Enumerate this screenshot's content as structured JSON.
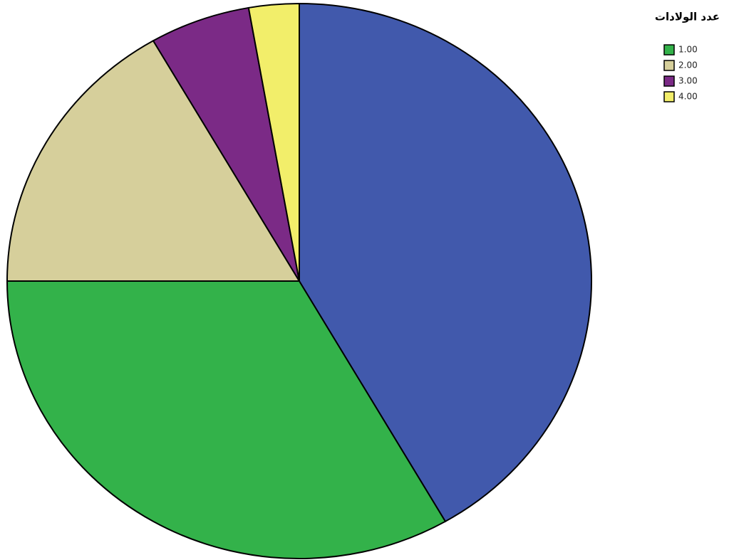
{
  "chart_data": {
    "type": "pie",
    "title": "عدد الولادات",
    "categories": [
      "1.00",
      "2.00",
      "3.00",
      "4.00",
      null
    ],
    "values": [
      12,
      6,
      2,
      1,
      15
    ],
    "colors": [
      "#33b24a",
      "#d6cf9b",
      "#7b2a86",
      "#f2ee6a",
      "#4159ac"
    ]
  }
}
